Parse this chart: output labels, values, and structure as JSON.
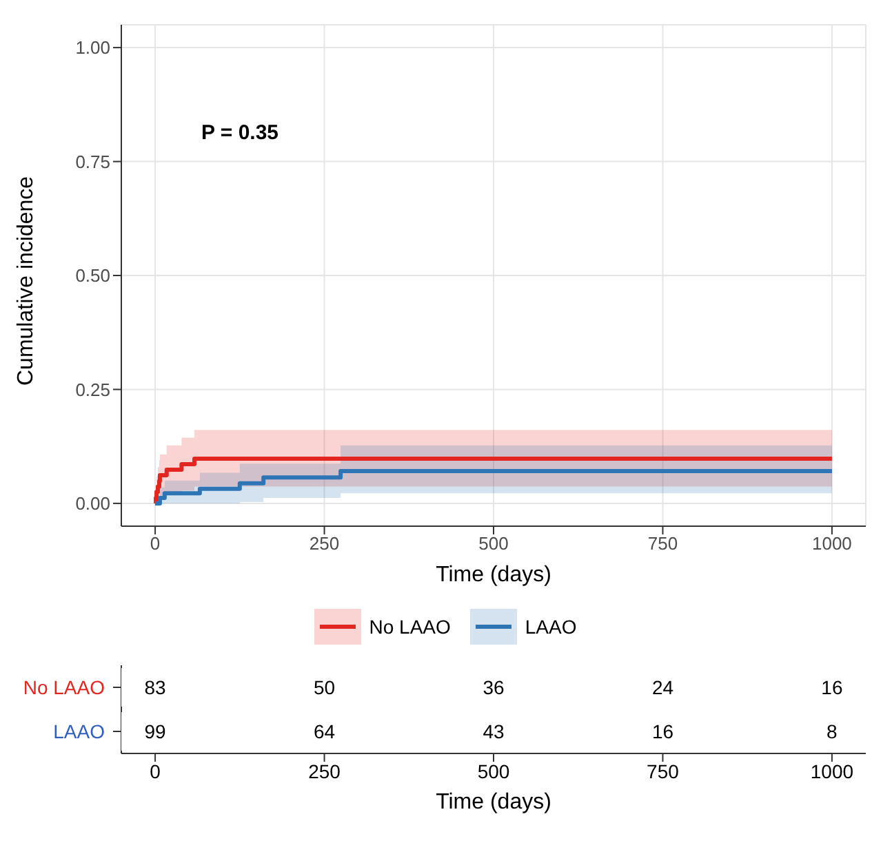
{
  "chart_data": [
    {
      "type": "step",
      "xlabel": "Time (days)",
      "ylabel": "Cumulative incidence",
      "annotations": [
        "P = 0.35"
      ],
      "xlim": [
        -50,
        1050
      ],
      "xticks": [
        0,
        250,
        500,
        750,
        1000
      ],
      "ylim": [
        -0.05,
        1.05
      ],
      "yticks": [
        {
          "value": 0,
          "label": "0.00"
        },
        {
          "value": 0.25,
          "label": "0.25"
        },
        {
          "value": 0.5,
          "label": "0.50"
        },
        {
          "value": 0.75,
          "label": "0.75"
        },
        {
          "value": 1,
          "label": "1.00"
        }
      ],
      "grid": true,
      "legend": "bottom",
      "line_style": "solid",
      "marker": "none",
      "series": [
        {
          "name": "No LAAO",
          "color": "#e3261f",
          "x": [
            0,
            1,
            2,
            4,
            6,
            7,
            17,
            39,
            58,
            1000
          ],
          "values": [
            0,
            0.012,
            0.025,
            0.037,
            0.049,
            0.062,
            0.074,
            0.086,
            0.098,
            0.098
          ],
          "lower": [
            0,
            0,
            0,
            0.002,
            0.006,
            0.012,
            0.02,
            0.028,
            0.037,
            0.037
          ],
          "upper": [
            0,
            0.04,
            0.06,
            0.08,
            0.095,
            0.107,
            0.127,
            0.144,
            0.161,
            0.161
          ]
        },
        {
          "name": "LAAO",
          "color": "#2e75b6",
          "x": [
            0,
            7,
            14,
            66,
            125,
            160,
            274,
            1000
          ],
          "values": [
            0,
            0.012,
            0.022,
            0.032,
            0.044,
            0.057,
            0.071,
            0.071
          ],
          "lower": [
            0,
            0,
            0,
            0,
            0.003,
            0.012,
            0.022,
            0.022
          ],
          "upper": [
            0,
            0.035,
            0.05,
            0.067,
            0.087,
            0.087,
            0.127,
            0.127
          ]
        }
      ]
    },
    {
      "type": "heatmap",
      "xlabel": "Time (days)",
      "categories": [
        "0",
        "250",
        "500",
        "750",
        "1000"
      ],
      "y_categories": [
        "No LAAO",
        "LAAO"
      ],
      "colors": [
        "#e3261f",
        "#2e5fc0"
      ],
      "data_labels": true,
      "cells": [
        [
          83,
          50,
          36,
          24,
          16
        ],
        [
          99,
          64,
          43,
          16,
          8
        ]
      ]
    }
  ]
}
